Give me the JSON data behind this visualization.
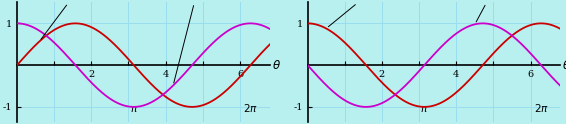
{
  "xlim": [
    0,
    6.8
  ],
  "ylim": [
    -1.35,
    1.5
  ],
  "xticks": [
    1,
    2,
    3,
    4,
    5,
    6
  ],
  "xtick_labels": [
    "",
    "2",
    "",
    "4",
    "",
    "6"
  ],
  "pi_x": 3.1416,
  "two_pi_x": 6.2832,
  "ytick_pos": [
    -1,
    1
  ],
  "ytick_labels": [
    "-1",
    "1"
  ],
  "sin_color": "#cc0000",
  "cos_color": "#cc00cc",
  "background_color": "#b8f0f0",
  "grid_color": "#99ddee",
  "axis_color": "#000000",
  "line_width": 1.3,
  "tick_fontsize": 7,
  "annot_fontsize": 8.5
}
